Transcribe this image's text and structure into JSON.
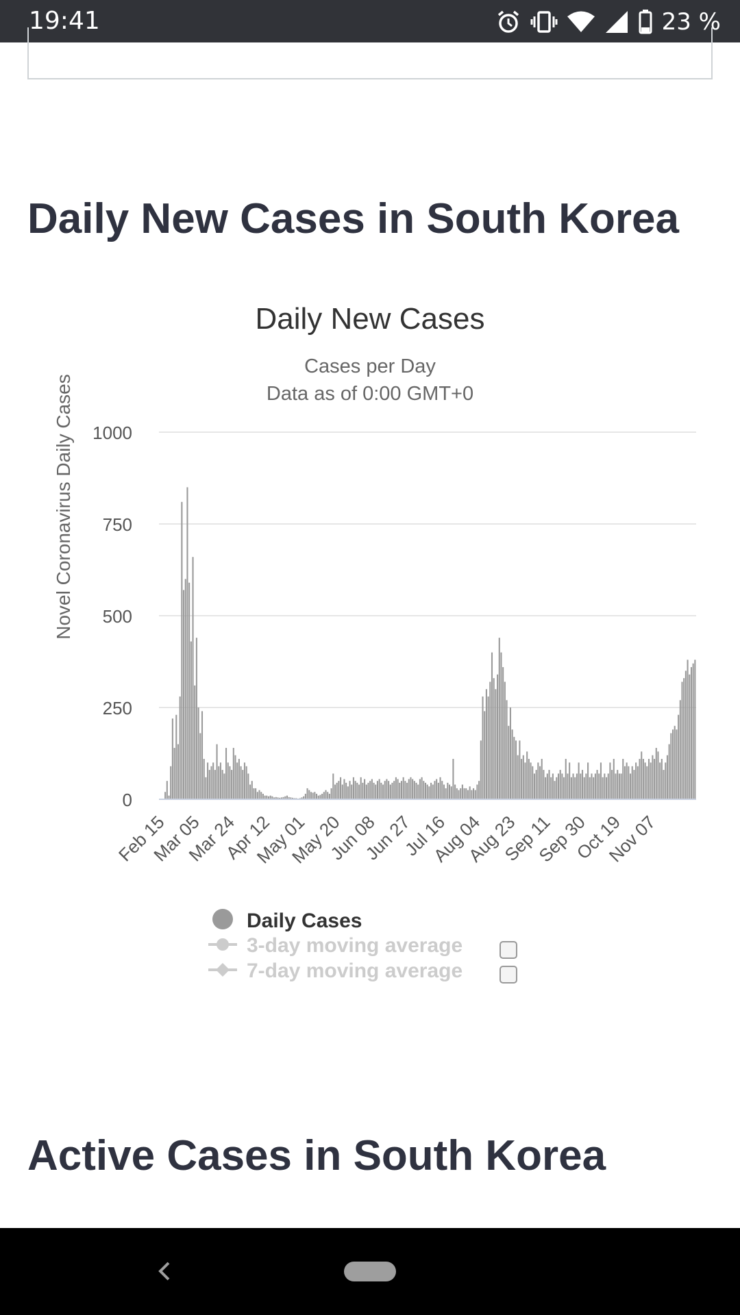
{
  "status_bar": {
    "time": "19:41",
    "battery": "23 %",
    "icons": [
      "alarm-icon",
      "vibrate-icon",
      "wifi-icon",
      "signal-icon",
      "battery-icon"
    ]
  },
  "sections": {
    "daily_heading": "Daily New Cases in South Korea",
    "active_heading": "Active Cases in South Korea"
  },
  "colors": {
    "bar": "#9a9a9a",
    "grid": "#e6e6e6",
    "heading": "#2f3240",
    "legend_inactive": "#cccccc"
  },
  "chart_data": {
    "type": "bar",
    "title": "Daily New Cases",
    "subtitle_line1": "Cases per Day",
    "subtitle_line2": "Data as of 0:00 GMT+0",
    "ylabel": "Novel Coronavirus Daily Cases",
    "xlabel": "",
    "ylim": [
      0,
      1000
    ],
    "yticks": [
      0,
      250,
      500,
      750,
      1000
    ],
    "x_tick_labels": [
      "Feb 15",
      "Mar 05",
      "Mar 24",
      "Apr 12",
      "May 01",
      "May 20",
      "Jun 08",
      "Jun 27",
      "Jul 16",
      "Aug 04",
      "Aug 23",
      "Sep 11",
      "Sep 30",
      "Oct 19",
      "Nov 07"
    ],
    "x_tick_index": [
      0,
      19,
      38,
      57,
      76,
      95,
      114,
      133,
      152,
      171,
      190,
      209,
      228,
      247,
      266
    ],
    "grid": true,
    "legend": [
      {
        "label": "Daily Cases",
        "active": true,
        "marker": "circle"
      },
      {
        "label": "3-day moving average",
        "active": false,
        "marker": "circle-line"
      },
      {
        "label": "7-day moving average",
        "active": false,
        "marker": "diamond-line"
      }
    ],
    "series": [
      {
        "name": "Daily Cases",
        "values": [
          0,
          0,
          0,
          20,
          50,
          10,
          90,
          220,
          140,
          230,
          150,
          280,
          810,
          570,
          600,
          850,
          590,
          430,
          660,
          310,
          440,
          250,
          180,
          240,
          110,
          60,
          100,
          80,
          90,
          100,
          80,
          150,
          90,
          100,
          80,
          70,
          140,
          100,
          90,
          80,
          140,
          120,
          100,
          110,
          90,
          80,
          100,
          90,
          70,
          40,
          50,
          30,
          30,
          20,
          25,
          20,
          15,
          10,
          10,
          8,
          10,
          8,
          5,
          6,
          5,
          4,
          5,
          6,
          8,
          10,
          6,
          5,
          4,
          3,
          3,
          2,
          3,
          5,
          8,
          15,
          30,
          25,
          20,
          18,
          20,
          15,
          10,
          12,
          15,
          20,
          25,
          20,
          15,
          30,
          70,
          40,
          45,
          50,
          60,
          40,
          55,
          45,
          35,
          50,
          40,
          60,
          50,
          45,
          40,
          60,
          45,
          55,
          40,
          45,
          50,
          55,
          45,
          40,
          50,
          55,
          45,
          40,
          50,
          55,
          50,
          40,
          45,
          50,
          60,
          55,
          45,
          50,
          60,
          50,
          45,
          55,
          60,
          55,
          50,
          45,
          40,
          55,
          60,
          50,
          45,
          40,
          35,
          45,
          40,
          50,
          55,
          45,
          60,
          50,
          40,
          30,
          45,
          40,
          35,
          110,
          40,
          30,
          25,
          30,
          40,
          30,
          30,
          25,
          35,
          25,
          30,
          25,
          40,
          50,
          160,
          280,
          240,
          300,
          280,
          320,
          400,
          330,
          300,
          340,
          440,
          400,
          360,
          320,
          270,
          200,
          250,
          190,
          170,
          160,
          120,
          160,
          110,
          120,
          100,
          130,
          110,
          100,
          90,
          70,
          80,
          100,
          90,
          110,
          80,
          60,
          70,
          80,
          60,
          70,
          50,
          60,
          70,
          80,
          70,
          60,
          110,
          70,
          100,
          60,
          70,
          60,
          70,
          100,
          70,
          80,
          60,
          70,
          100,
          60,
          70,
          60,
          70,
          80,
          70,
          100,
          60,
          70,
          60,
          70,
          100,
          80,
          110,
          70,
          80,
          70,
          70,
          110,
          90,
          100,
          90,
          70,
          90,
          80,
          100,
          90,
          110,
          130,
          110,
          100,
          90,
          110,
          100,
          120,
          110,
          140,
          130,
          100,
          110,
          80,
          100,
          120,
          150,
          180,
          190,
          200,
          190,
          230,
          270,
          320,
          330,
          350,
          380,
          340,
          360,
          370,
          380
        ]
      }
    ]
  }
}
